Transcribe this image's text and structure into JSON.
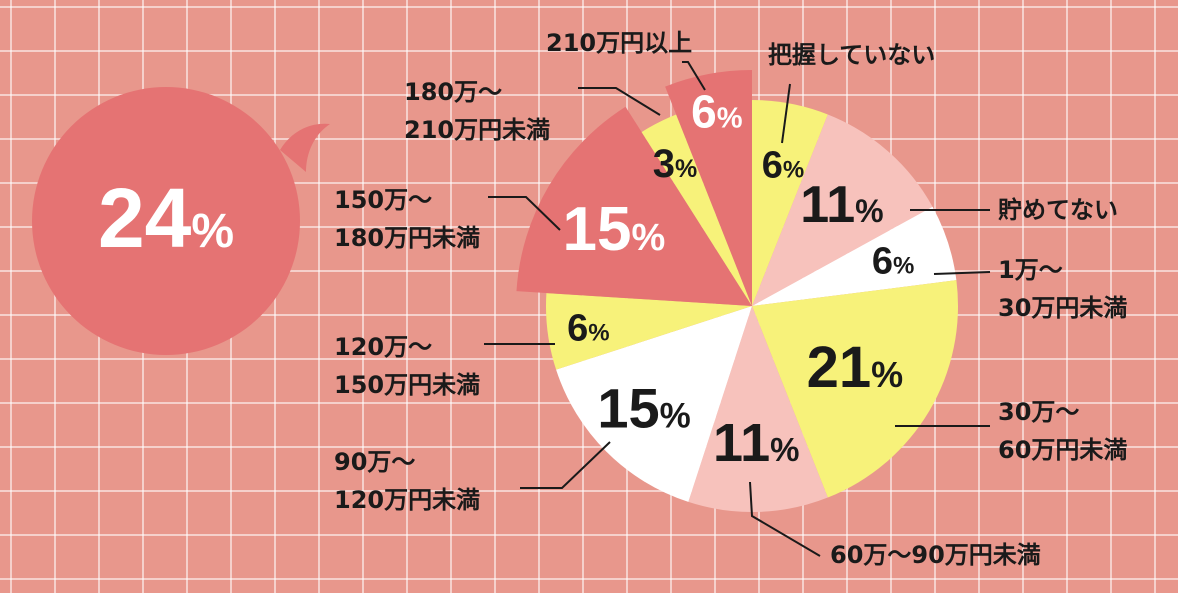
{
  "highlight": {
    "value": "24",
    "unit": "%"
  },
  "chart_data": {
    "type": "pie",
    "unit": "%",
    "slices": [
      {
        "label": "把握していない",
        "value": 6,
        "color": "#f7f27a"
      },
      {
        "label": "貯めてない",
        "value": 11,
        "color": "#f7c2bc"
      },
      {
        "label": "1万～30万円未満",
        "value": 6,
        "color": "#ffffff"
      },
      {
        "label": "30万～60万円未満",
        "value": 21,
        "color": "#f7f27a"
      },
      {
        "label": "60万～90万円未満",
        "value": 11,
        "color": "#f7c2bc"
      },
      {
        "label": "90万～120万円未満",
        "value": 15,
        "color": "#ffffff"
      },
      {
        "label": "120万～150万円未満",
        "value": 6,
        "color": "#f7f27a"
      },
      {
        "label": "150万～180万円未満",
        "value": 15,
        "color": "#e57373",
        "exploded": true
      },
      {
        "label": "180万～210万円未満",
        "value": 3,
        "color": "#f7f27a"
      },
      {
        "label": "210万円以上",
        "value": 6,
        "color": "#e57373",
        "exploded": true
      }
    ]
  }
}
